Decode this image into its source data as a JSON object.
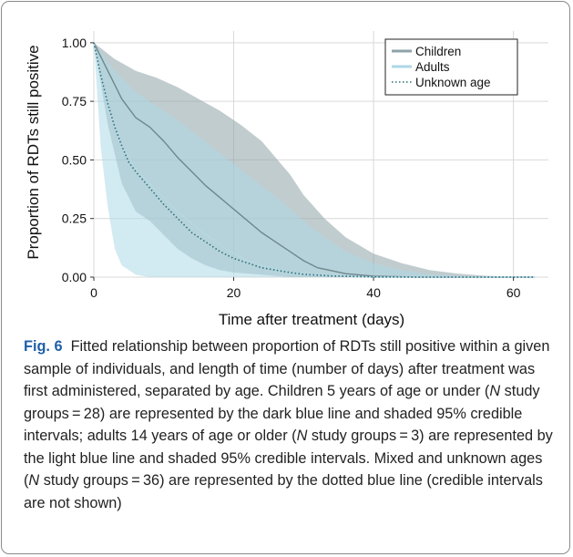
{
  "chart_data": {
    "type": "line",
    "xlabel": "Time after treatment (days)",
    "ylabel": "Proportion of RDTs still positive",
    "xlim": [
      0,
      65
    ],
    "ylim": [
      0,
      1.05
    ],
    "x_ticks": [
      0,
      20,
      40,
      60
    ],
    "y_ticks": [
      "0.00",
      "0.25",
      "0.50",
      "0.75",
      "1.00"
    ],
    "y_tick_values": [
      0,
      0.25,
      0.5,
      0.75,
      1.0
    ],
    "grid": true,
    "legend_position": "top-right",
    "series": [
      {
        "name": "Children",
        "color": "#6f878d",
        "band_color": "#8ea3a8",
        "line_style": "solid",
        "points": [
          [
            0,
            1.0
          ],
          [
            2,
            0.88
          ],
          [
            4,
            0.76
          ],
          [
            6,
            0.68
          ],
          [
            8,
            0.64
          ],
          [
            10,
            0.58
          ],
          [
            12,
            0.51
          ],
          [
            14,
            0.45
          ],
          [
            16,
            0.39
          ],
          [
            18,
            0.34
          ],
          [
            20,
            0.29
          ],
          [
            22,
            0.24
          ],
          [
            24,
            0.19
          ],
          [
            26,
            0.15
          ],
          [
            28,
            0.11
          ],
          [
            30,
            0.07
          ],
          [
            32,
            0.04
          ],
          [
            36,
            0.015
          ],
          [
            40,
            0.004
          ],
          [
            46,
            0.0
          ],
          [
            63,
            0.0
          ]
        ],
        "lower": [
          [
            0,
            1.0
          ],
          [
            2,
            0.65
          ],
          [
            4,
            0.4
          ],
          [
            6,
            0.28
          ],
          [
            8,
            0.24
          ],
          [
            10,
            0.18
          ],
          [
            12,
            0.12
          ],
          [
            14,
            0.08
          ],
          [
            16,
            0.05
          ],
          [
            18,
            0.03
          ],
          [
            20,
            0.02
          ],
          [
            24,
            0.01
          ],
          [
            28,
            0.0
          ],
          [
            63,
            0.0
          ]
        ],
        "upper": [
          [
            0,
            1.0
          ],
          [
            3,
            0.93
          ],
          [
            6,
            0.88
          ],
          [
            9,
            0.85
          ],
          [
            12,
            0.81
          ],
          [
            15,
            0.76
          ],
          [
            18,
            0.71
          ],
          [
            21,
            0.65
          ],
          [
            24,
            0.58
          ],
          [
            28,
            0.44
          ],
          [
            30,
            0.35
          ],
          [
            33,
            0.25
          ],
          [
            36,
            0.17
          ],
          [
            40,
            0.1
          ],
          [
            44,
            0.06
          ],
          [
            48,
            0.03
          ],
          [
            52,
            0.015
          ],
          [
            56,
            0.006
          ],
          [
            60,
            0.002
          ],
          [
            63,
            0.0
          ]
        ]
      },
      {
        "name": "Adults",
        "color": "#b5d8e3",
        "band_color": "#add8e6",
        "line_style": "solid",
        "points": [
          [
            0,
            1.0
          ],
          [
            2,
            0.72
          ],
          [
            4,
            0.56
          ],
          [
            6,
            0.46
          ],
          [
            8,
            0.4
          ],
          [
            10,
            0.34
          ],
          [
            12,
            0.28
          ],
          [
            14,
            0.23
          ],
          [
            16,
            0.18
          ],
          [
            18,
            0.14
          ],
          [
            20,
            0.1
          ],
          [
            22,
            0.07
          ],
          [
            24,
            0.05
          ],
          [
            28,
            0.02
          ],
          [
            32,
            0.008
          ],
          [
            40,
            0.0
          ],
          [
            63,
            0.0
          ]
        ],
        "lower": [
          [
            0,
            1.0
          ],
          [
            1,
            0.55
          ],
          [
            2,
            0.3
          ],
          [
            3,
            0.12
          ],
          [
            4,
            0.05
          ],
          [
            6,
            0.01
          ],
          [
            8,
            0.0
          ],
          [
            63,
            0.0
          ]
        ],
        "upper": [
          [
            0,
            1.0
          ],
          [
            3,
            0.88
          ],
          [
            6,
            0.79
          ],
          [
            9,
            0.73
          ],
          [
            12,
            0.67
          ],
          [
            15,
            0.6
          ],
          [
            18,
            0.53
          ],
          [
            21,
            0.46
          ],
          [
            24,
            0.39
          ],
          [
            27,
            0.32
          ],
          [
            30,
            0.24
          ],
          [
            33,
            0.17
          ],
          [
            36,
            0.11
          ],
          [
            40,
            0.06
          ],
          [
            44,
            0.03
          ],
          [
            48,
            0.012
          ],
          [
            52,
            0.004
          ],
          [
            56,
            0.0
          ],
          [
            63,
            0.0
          ]
        ]
      },
      {
        "name": "Unknown age",
        "color": "#2e6e78",
        "line_style": "dotted",
        "points": [
          [
            0,
            1.0
          ],
          [
            1,
            0.86
          ],
          [
            2,
            0.74
          ],
          [
            3,
            0.64
          ],
          [
            4,
            0.56
          ],
          [
            5,
            0.49
          ],
          [
            6,
            0.45
          ],
          [
            8,
            0.38
          ],
          [
            10,
            0.31
          ],
          [
            12,
            0.25
          ],
          [
            14,
            0.19
          ],
          [
            16,
            0.15
          ],
          [
            18,
            0.11
          ],
          [
            20,
            0.08
          ],
          [
            22,
            0.06
          ],
          [
            24,
            0.04
          ],
          [
            26,
            0.03
          ],
          [
            28,
            0.02
          ],
          [
            30,
            0.012
          ],
          [
            34,
            0.005
          ],
          [
            40,
            0.001
          ],
          [
            46,
            0.0
          ],
          [
            63,
            0.0
          ]
        ]
      }
    ]
  },
  "caption": {
    "label": "Fig. 6",
    "line1": "Fitted relationship between proportion of RDTs still positive",
    "line2": "within a given sample of individuals, and length of time (number",
    "line3": "of days) after treatment was first administered, separated by",
    "line4_a": "age. Children 5 years of age or under (",
    "n_italic": "N",
    "line4_b": " study groups = 28) are",
    "line5": "represented by the dark blue line and shaded 95% credible intervals;",
    "line6_a": "adults 14 years of age or older (",
    "line6_b": " study groups = 3) are represented",
    "line7": "by the light blue line and shaded 95% credible intervals. Mixed and",
    "line8_a": "unknown ages (",
    "line8_b": " study groups = 36) are represented by the dotted",
    "line9": "blue line (credible intervals are not shown)"
  }
}
